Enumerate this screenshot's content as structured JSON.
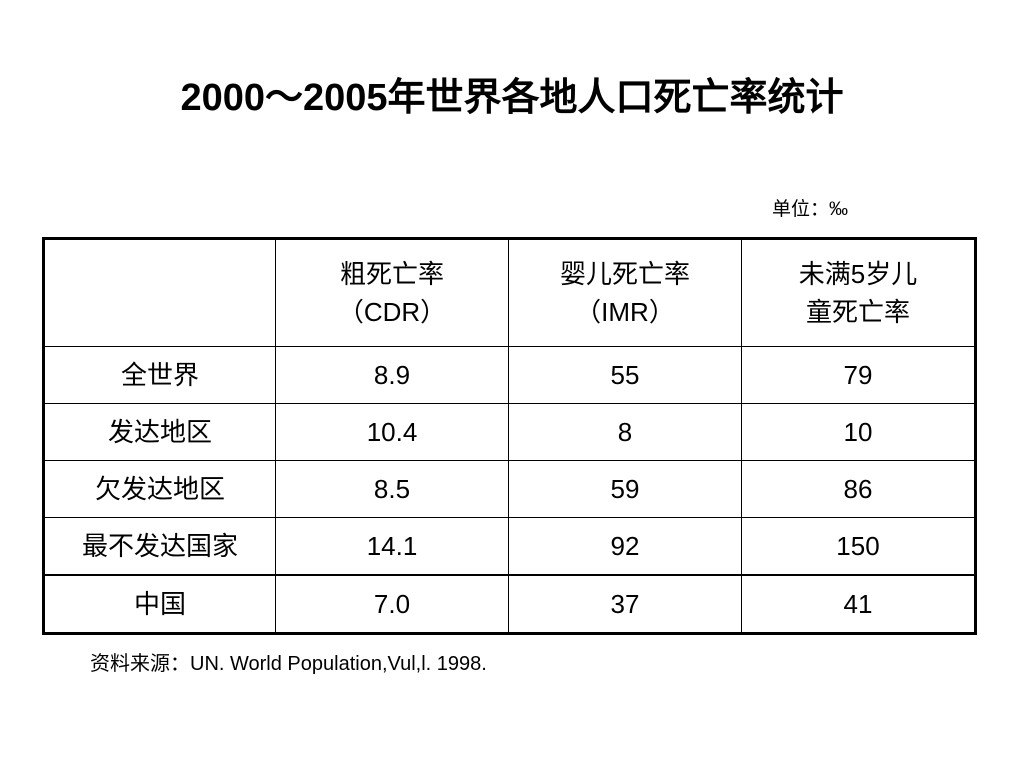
{
  "title": "2000～2005年世界各地人口死亡率统计",
  "unit": "单位：‰",
  "table": {
    "columns": [
      {
        "line1": "粗死亡率",
        "line2": "（CDR）"
      },
      {
        "line1": "婴儿死亡率",
        "line2": "（IMR）"
      },
      {
        "line1": "未满5岁儿",
        "line2": "童死亡率"
      }
    ],
    "rows": [
      {
        "region": "全世界",
        "values": [
          "8.9",
          "55",
          "79"
        ]
      },
      {
        "region": "发达地区",
        "values": [
          "10.4",
          "8",
          "10"
        ]
      },
      {
        "region": "欠发达地区",
        "values": [
          "8.5",
          "59",
          "86"
        ]
      },
      {
        "region": "最不发达国家",
        "values": [
          "14.1",
          "92",
          "150"
        ]
      },
      {
        "region": "中国",
        "values": [
          "7.0",
          "37",
          "41"
        ]
      }
    ]
  },
  "source": "资料来源：UN. World Population,Vul,l. 1998."
}
